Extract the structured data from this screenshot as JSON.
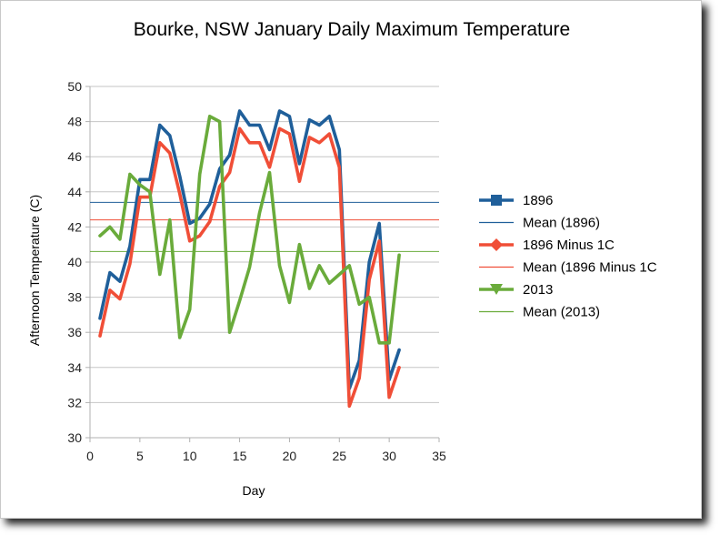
{
  "chart_data": {
    "type": "line",
    "title": "Bourke, NSW January Daily Maximum Temperature",
    "xlabel": "Day",
    "ylabel": "Afternoon Temperature (C)",
    "xlim": [
      0,
      35
    ],
    "ylim": [
      30,
      50
    ],
    "x_ticks": [
      "0",
      "5",
      "10",
      "15",
      "20",
      "25",
      "30",
      "35"
    ],
    "y_ticks": [
      "30",
      "32",
      "34",
      "36",
      "38",
      "40",
      "42",
      "44",
      "46",
      "48",
      "50"
    ],
    "grid": "horizontal",
    "legend_position": "right",
    "x": [
      1,
      2,
      3,
      4,
      5,
      6,
      7,
      8,
      9,
      10,
      11,
      12,
      13,
      14,
      15,
      16,
      17,
      18,
      19,
      20,
      21,
      22,
      23,
      24,
      25,
      26,
      27,
      28,
      29,
      30,
      31
    ],
    "series": [
      {
        "name": "1896",
        "color": "#1f5f9a",
        "marker": "square",
        "values": [
          36.8,
          39.4,
          38.9,
          40.9,
          44.7,
          44.7,
          47.8,
          47.2,
          44.9,
          42.2,
          42.5,
          43.3,
          45.3,
          46.1,
          48.6,
          47.8,
          47.8,
          46.4,
          48.6,
          48.3,
          45.6,
          48.1,
          47.8,
          48.3,
          46.4,
          32.8,
          34.4,
          40.0,
          42.2,
          33.3,
          35.0
        ]
      },
      {
        "name": "1896 Minus 1C",
        "color": "#f04e37",
        "marker": "diamond",
        "values": [
          35.8,
          38.4,
          37.9,
          39.9,
          43.7,
          43.7,
          46.8,
          46.2,
          43.9,
          41.2,
          41.5,
          42.3,
          44.3,
          45.1,
          47.6,
          46.8,
          46.8,
          45.4,
          47.6,
          47.3,
          44.6,
          47.1,
          46.8,
          47.3,
          45.4,
          31.8,
          33.4,
          39.0,
          41.2,
          32.3,
          34.0
        ]
      },
      {
        "name": "2013",
        "color": "#6aab3b",
        "marker": "triangle-down",
        "values": [
          41.5,
          42.0,
          41.3,
          45.0,
          44.4,
          44.0,
          39.3,
          42.4,
          35.7,
          37.3,
          45.0,
          48.3,
          48.0,
          36.0,
          37.8,
          39.7,
          42.8,
          45.1,
          39.8,
          37.7,
          41.0,
          38.5,
          39.8,
          38.8,
          39.3,
          39.8,
          37.6,
          38.0,
          35.4,
          35.4,
          40.4
        ]
      }
    ],
    "means": [
      {
        "name": "Mean (1896)",
        "color": "#1f5f9a",
        "value": 43.4
      },
      {
        "name": "Mean (1896 Minus 1C",
        "color": "#f04e37",
        "value": 42.4
      },
      {
        "name": "Mean (2013)",
        "color": "#6aab3b",
        "value": 40.6
      }
    ],
    "legend": [
      "1896",
      "Mean (1896)",
      "1896 Minus 1C",
      "Mean (1896 Minus 1C",
      "2013",
      "Mean (2013)"
    ]
  }
}
